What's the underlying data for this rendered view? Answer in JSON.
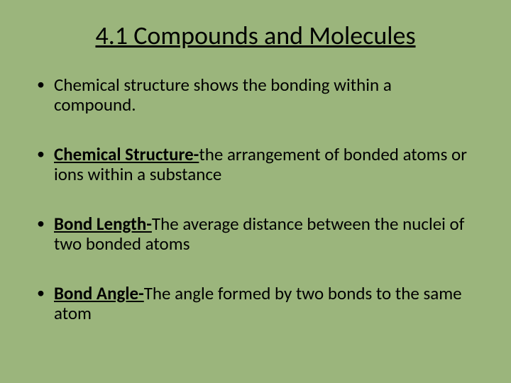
{
  "slide": {
    "background_color": "#9bb57c",
    "text_color": "#000000",
    "font_family": "Calibri",
    "title": "4.1 Compounds and Molecules",
    "title_fontsize": 36,
    "title_underline": true,
    "title_align": "center",
    "bullet_fontsize": 25,
    "bullets": [
      {
        "term": "",
        "text": "Chemical structure shows the bonding within a compound."
      },
      {
        "term": "Chemical Structure-",
        "text": "the arrangement of bonded atoms or ions within a substance"
      },
      {
        "term": "Bond Length-",
        "text": "The average distance between the nuclei of two bonded atoms"
      },
      {
        "term": "Bond Angle-",
        "text": "The angle formed by two bonds to the same atom"
      }
    ]
  }
}
